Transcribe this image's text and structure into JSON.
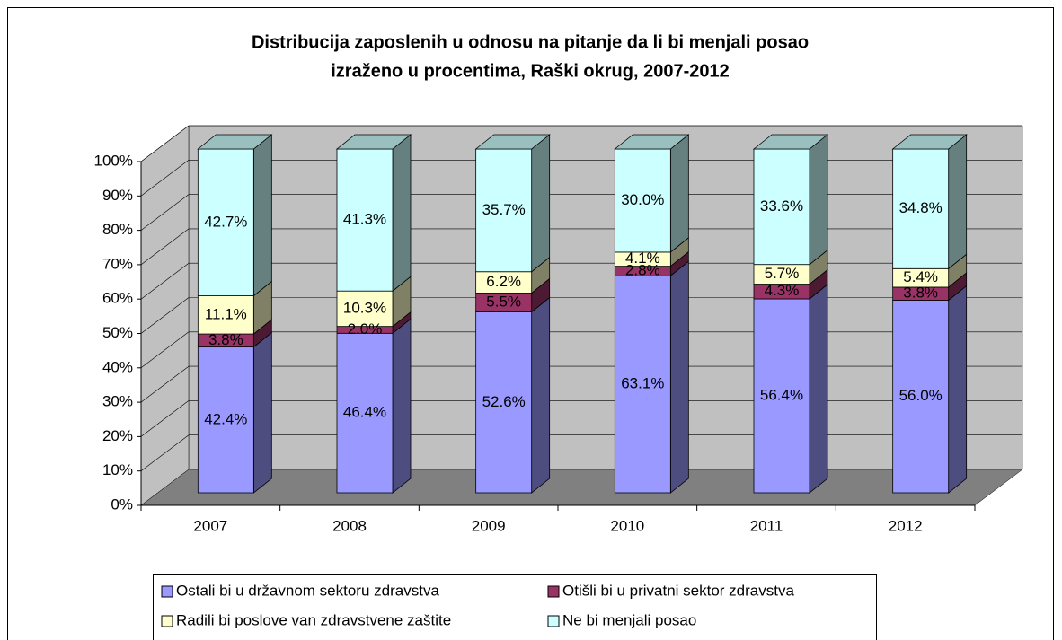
{
  "chart_data": {
    "type": "bar3d_stacked",
    "title": [
      "Distribucija zaposlenih u odnosu na pitanje da li bi menjali posao",
      "izraženo u procentima, Raški okrug, 2007-2012"
    ],
    "categories": [
      "2007",
      "2008",
      "2009",
      "2010",
      "2011",
      "2012"
    ],
    "series": [
      {
        "name": "Ostali bi u državnom sektoru zdravstva",
        "color": "#9999ff",
        "values": [
          42.4,
          46.4,
          52.6,
          63.1,
          56.4,
          56.0
        ],
        "value_labels": [
          "42.4%",
          "46.4%",
          "52.6%",
          "63.1%",
          "56.4%",
          "56.0%"
        ]
      },
      {
        "name": "Otišli bi u privatni sektor zdravstva",
        "color": "#993366",
        "values": [
          3.8,
          2.0,
          5.5,
          2.8,
          4.3,
          3.8
        ],
        "value_labels": [
          "3.8%",
          "2.0%",
          "5.5%",
          "2.8%",
          "4.3%",
          "3.8%"
        ]
      },
      {
        "name": "Radili bi poslove van zdravstvene zaštite",
        "color": "#ffffcc",
        "values": [
          11.1,
          10.3,
          6.2,
          4.1,
          5.7,
          5.4
        ],
        "value_labels": [
          "11.1%",
          "10.3%",
          "6.2%",
          "4.1%",
          "5.7%",
          "5.4%"
        ]
      },
      {
        "name": "Ne bi menjali posao",
        "color": "#ccffff",
        "values": [
          42.7,
          41.3,
          35.7,
          30.0,
          33.6,
          34.8
        ],
        "value_labels": [
          "42.7%",
          "41.3%",
          "35.7%",
          "30.0%",
          "33.6%",
          "34.8%"
        ]
      }
    ],
    "ylim": [
      0,
      100
    ],
    "yticks": [
      {
        "value": 0,
        "label": "0%"
      },
      {
        "value": 10,
        "label": "10%"
      },
      {
        "value": 20,
        "label": "20%"
      },
      {
        "value": 30,
        "label": "30%"
      },
      {
        "value": 40,
        "label": "40%"
      },
      {
        "value": 50,
        "label": "50%"
      },
      {
        "value": 60,
        "label": "60%"
      },
      {
        "value": 70,
        "label": "70%"
      },
      {
        "value": 80,
        "label": "80%"
      },
      {
        "value": 90,
        "label": "90%"
      },
      {
        "value": 100,
        "label": "100%"
      }
    ],
    "grid": true
  }
}
